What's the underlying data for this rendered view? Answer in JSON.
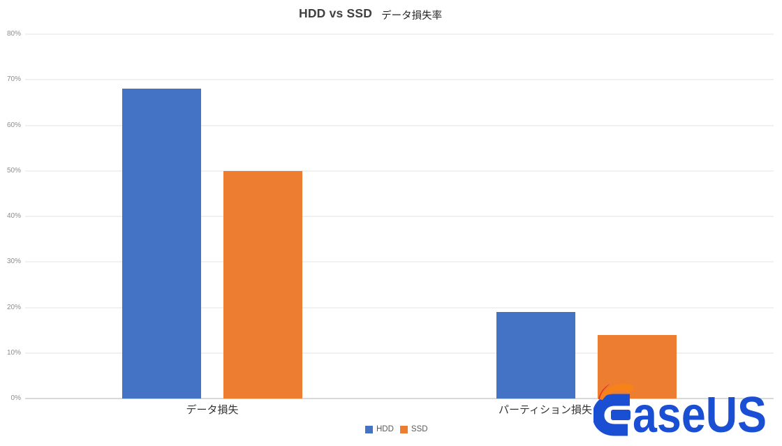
{
  "title": {
    "main": "HDD vs SSD",
    "sub": "データ損失率"
  },
  "chart_data": {
    "type": "bar",
    "title": "HDD vs SSD データ損失率",
    "categories": [
      "データ損失",
      "パーティション損失"
    ],
    "series": [
      {
        "name": "HDD",
        "color": "#4472C4",
        "values": [
          68,
          19
        ]
      },
      {
        "name": "SSD",
        "color": "#ED7D31",
        "values": [
          50,
          14
        ]
      }
    ],
    "ylabel": "",
    "xlabel": "",
    "ylim": [
      0,
      80
    ],
    "ytick_step": 10,
    "ytick_labels": [
      "0%",
      "10%",
      "20%",
      "30%",
      "40%",
      "50%",
      "60%",
      "70%",
      "80%"
    ],
    "grid": true,
    "legend_position": "bottom"
  },
  "legend": {
    "items": [
      {
        "label": "HDD",
        "color": "#4472C4"
      },
      {
        "label": "SSD",
        "color": "#ED7D31"
      }
    ]
  },
  "watermark": {
    "text": "EaseUS",
    "wordmark_tail": "aseUS",
    "brand_blue": "#1B4FD3",
    "brand_orange": "#F8821A",
    "brand_red": "#E03A20"
  },
  "colors": {
    "gridline": "#F1F1F1",
    "axis_line": "#D9D9D9",
    "tick_text": "#8C8C8C",
    "title_text": "#404040",
    "category_text": "#333333",
    "legend_text": "#595959",
    "background": "#FFFFFF"
  }
}
